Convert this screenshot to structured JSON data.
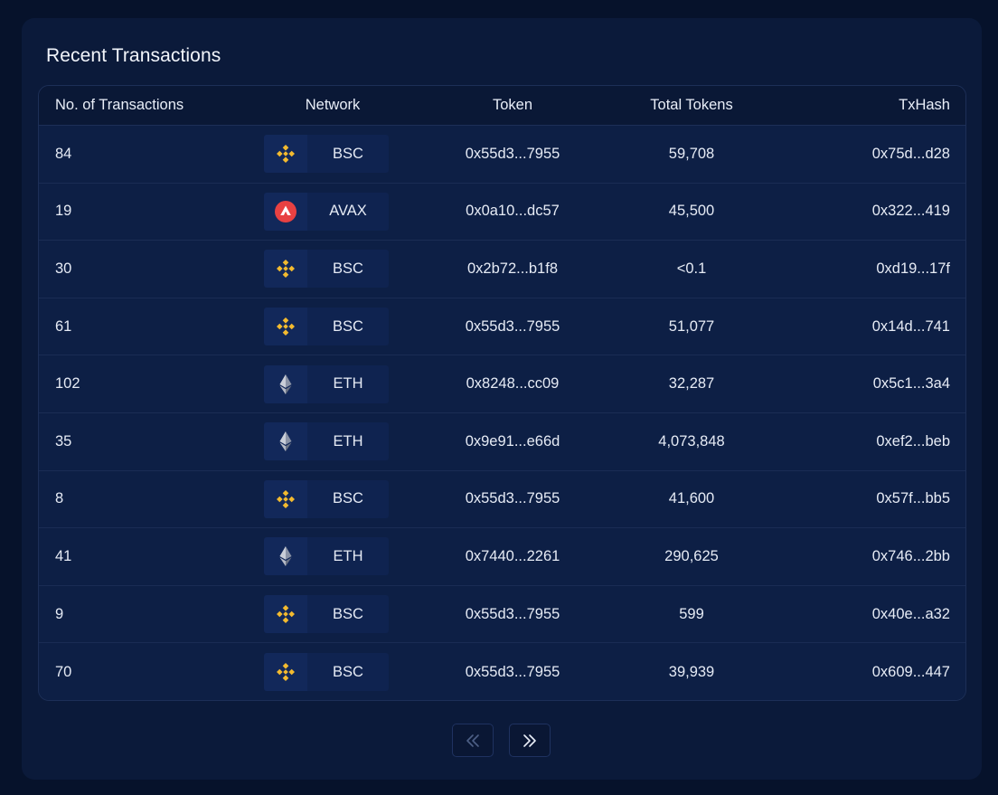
{
  "page": {
    "title": "Recent Transactions"
  },
  "table": {
    "headers": {
      "count": "No. of Transactions",
      "network": "Network",
      "token": "Token",
      "total": "Total Tokens",
      "txhash": "TxHash"
    },
    "rows": [
      {
        "count": "84",
        "network": "BSC",
        "icon": "bnb-icon",
        "token": "0x55d3...7955",
        "total": "59,708",
        "txhash": "0x75d...d28"
      },
      {
        "count": "19",
        "network": "AVAX",
        "icon": "avax-icon",
        "token": "0x0a10...dc57",
        "total": "45,500",
        "txhash": "0x322...419"
      },
      {
        "count": "30",
        "network": "BSC",
        "icon": "bnb-icon",
        "token": "0x2b72...b1f8",
        "total": "<0.1",
        "txhash": "0xd19...17f"
      },
      {
        "count": "61",
        "network": "BSC",
        "icon": "bnb-icon",
        "token": "0x55d3...7955",
        "total": "51,077",
        "txhash": "0x14d...741"
      },
      {
        "count": "102",
        "network": "ETH",
        "icon": "eth-icon",
        "token": "0x8248...cc09",
        "total": "32,287",
        "txhash": "0x5c1...3a4"
      },
      {
        "count": "35",
        "network": "ETH",
        "icon": "eth-icon",
        "token": "0x9e91...e66d",
        "total": "4,073,848",
        "txhash": "0xef2...beb"
      },
      {
        "count": "8",
        "network": "BSC",
        "icon": "bnb-icon",
        "token": "0x55d3...7955",
        "total": "41,600",
        "txhash": "0x57f...bb5"
      },
      {
        "count": "41",
        "network": "ETH",
        "icon": "eth-icon",
        "token": "0x7440...2261",
        "total": "290,625",
        "txhash": "0x746...2bb"
      },
      {
        "count": "9",
        "network": "BSC",
        "icon": "bnb-icon",
        "token": "0x55d3...7955",
        "total": "599",
        "txhash": "0x40e...a32"
      },
      {
        "count": "70",
        "network": "BSC",
        "icon": "bnb-icon",
        "token": "0x55d3...7955",
        "total": "39,939",
        "txhash": "0x609...447"
      }
    ]
  },
  "pagination": {
    "prev_icon": "double-chevron-left-icon",
    "next_icon": "double-chevron-right-icon"
  },
  "colors": {
    "background": "#06122b",
    "card": "#0b1a3a",
    "bnb": "#f3ba2f",
    "avax": "#e84142"
  }
}
